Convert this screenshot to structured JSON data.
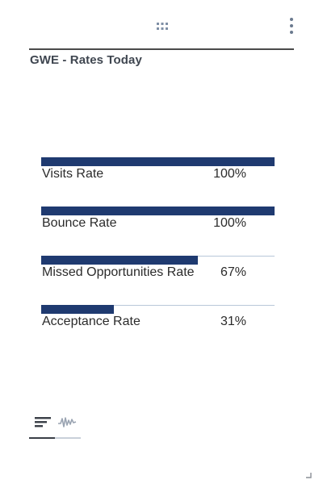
{
  "widget": {
    "title": "GWE - Rates Today"
  },
  "icons": {
    "drag_handle": "drag-handle-dots-icon",
    "menu": "vertical-dots-menu-icon",
    "bar_view": "horizontal-bars-icon",
    "trend_view": "sparkline-icon",
    "resize": "resize-corner-icon"
  },
  "colors": {
    "bar_fill": "#1f3a70",
    "bar_track": "#b8c7d9",
    "header_rule": "#4a4a4a"
  },
  "rates": [
    {
      "label": "Visits Rate",
      "value": "100%",
      "fraction": 1.0
    },
    {
      "label": "Bounce Rate",
      "value": "100%",
      "fraction": 1.0
    },
    {
      "label": "Missed Opportunities Rate",
      "value": "67%",
      "fraction": 0.67
    },
    {
      "label": "Acceptance Rate",
      "value": "31%",
      "fraction": 0.31
    }
  ],
  "view_tabs": [
    {
      "name": "bar-view",
      "active": true
    },
    {
      "name": "trend-view",
      "active": false
    }
  ]
}
